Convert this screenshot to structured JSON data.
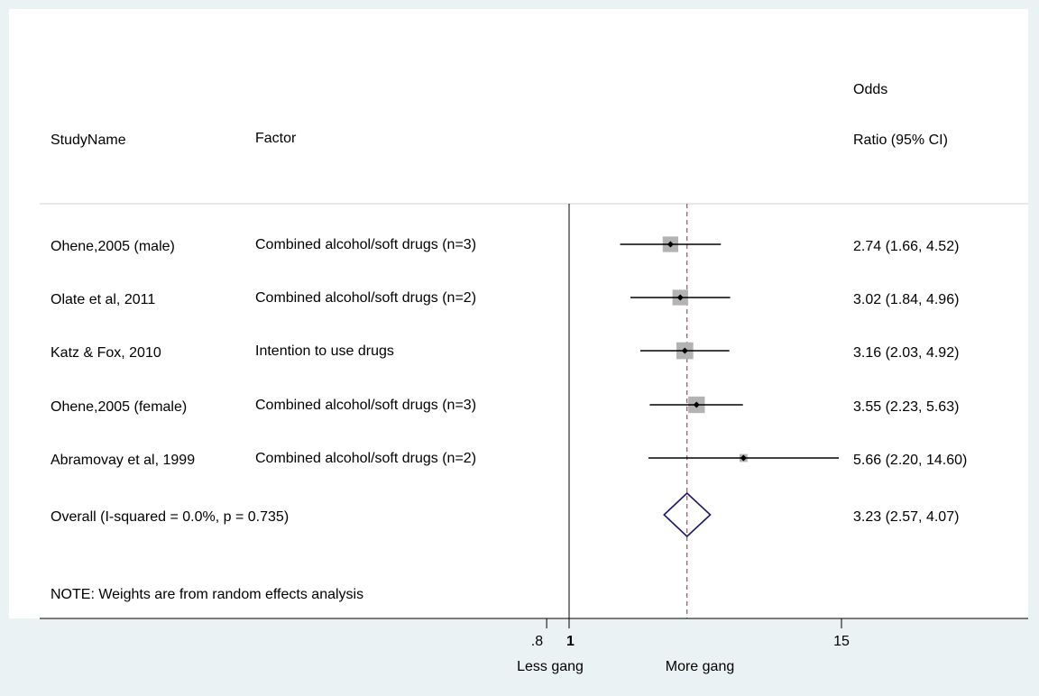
{
  "chart_data": {
    "type": "forest",
    "scale": "log",
    "headers": {
      "study": "StudyName",
      "factor": "Factor",
      "or_line1": "Odds",
      "or_line2": "Ratio (95% CI)"
    },
    "studies": [
      {
        "name": "Ohene,2005 (male)",
        "factor": "Combined alcohol/soft drugs (n=3)",
        "or": 2.74,
        "lo": 1.66,
        "hi": 4.52,
        "label": "2.74 (1.66, 4.52)",
        "weight": 23
      },
      {
        "name": "Olate et al, 2011",
        "factor": "Combined alcohol/soft drugs (n=2)",
        "or": 3.02,
        "lo": 1.84,
        "hi": 4.96,
        "label": "3.02 (1.84, 4.96)",
        "weight": 23
      },
      {
        "name": "Katz & Fox, 2010",
        "factor": "Intention to use drugs",
        "or": 3.16,
        "lo": 2.03,
        "hi": 4.92,
        "label": "3.16 (2.03, 4.92)",
        "weight": 27
      },
      {
        "name": "Ohene,2005 (female)",
        "factor": "Combined alcohol/soft drugs (n=3)",
        "or": 3.55,
        "lo": 2.23,
        "hi": 5.63,
        "label": "3.55 (2.23, 5.63)",
        "weight": 26
      },
      {
        "name": "Abramovay et al, 1999",
        "factor": "Combined alcohol/soft drugs (n=2)",
        "or": 5.66,
        "lo": 2.2,
        "hi": 14.6,
        "label": "5.66 (2.20, 14.60)",
        "weight": 6
      }
    ],
    "overall": {
      "label_text": "Overall  (I-squared = 0.0%, p = 0.735)",
      "or": 3.23,
      "lo": 2.57,
      "hi": 4.07,
      "label": "3.23 (2.57, 4.07)"
    },
    "note": "NOTE: Weights are from random effects analysis",
    "x_ticks": [
      {
        "value": 0.8,
        "label": ".8"
      },
      {
        "value": 1,
        "label": "1"
      },
      {
        "value": 15,
        "label": "15"
      }
    ],
    "x_caption_left": "Less gang",
    "x_caption_right": "More gang",
    "colors": {
      "background": "#eaf2f3",
      "plot": "#ffffff",
      "box": "#b3b3b3",
      "diamond": "#1a1a66",
      "overall_line": "#9c2b2b"
    }
  }
}
